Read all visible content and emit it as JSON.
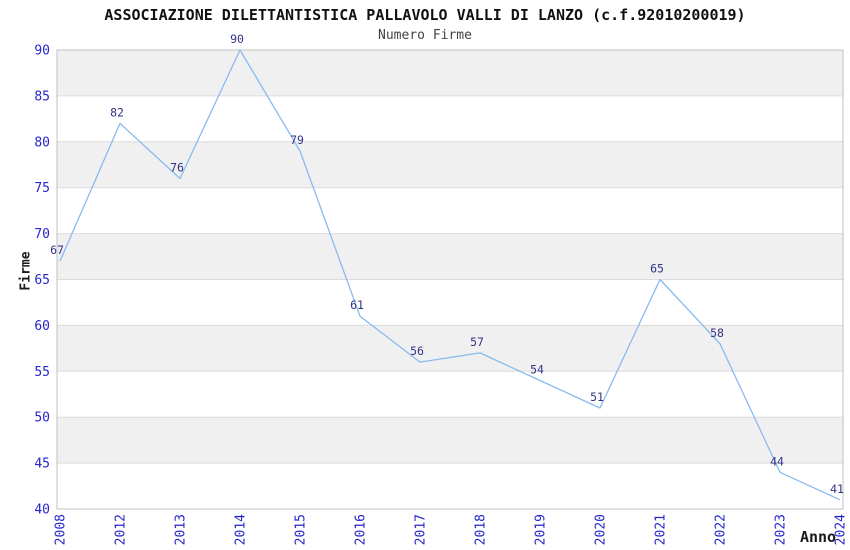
{
  "chart_data": {
    "type": "line",
    "title": "ASSOCIAZIONE DILETTANTISTICA PALLAVOLO VALLI DI LANZO (c.f.92010200019)",
    "subtitle": "Numero Firme",
    "xlabel": "Anno",
    "ylabel": "Firme",
    "categories": [
      "2008",
      "2012",
      "2013",
      "2014",
      "2015",
      "2016",
      "2017",
      "2018",
      "2019",
      "2020",
      "2021",
      "2022",
      "2023",
      "2024"
    ],
    "values": [
      67,
      82,
      76,
      90,
      79,
      61,
      56,
      57,
      54,
      51,
      65,
      58,
      44,
      41
    ],
    "ylim": [
      40,
      90
    ],
    "ytick_step": 5,
    "yticks": [
      40,
      45,
      50,
      55,
      60,
      65,
      70,
      75,
      80,
      85,
      90
    ],
    "grid": true,
    "legend": "none",
    "background_bands": "alternating horizontal stripes, gray on odd 5-unit bands",
    "colors": {
      "line": "#88bbee",
      "tick_label": "#2626cc",
      "data_label": "#333388",
      "band_fill": "#f0f0f0",
      "grid_line": "#dcdcdc",
      "plot_border": "#c0c0c0",
      "title": "#111111",
      "subtitle": "#444444",
      "axis_label": "#1a1a1a"
    }
  }
}
